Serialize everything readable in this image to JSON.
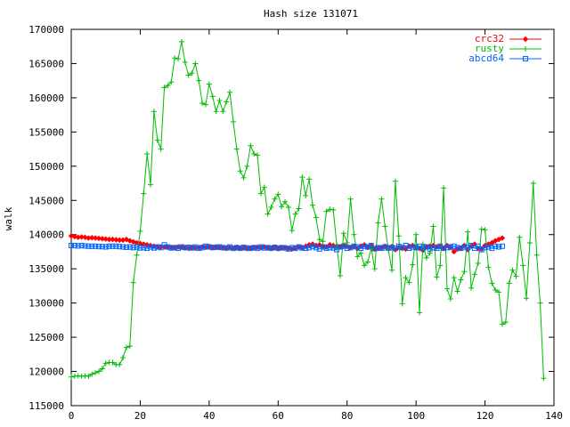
{
  "chart_data": {
    "type": "line",
    "title": "Hash size 131071",
    "xlabel": "",
    "ylabel": "walk",
    "xlim": [
      0,
      140
    ],
    "ylim": [
      115000,
      170000
    ],
    "xticks": [
      0,
      20,
      40,
      60,
      80,
      100,
      120,
      140
    ],
    "yticks": [
      115000,
      120000,
      125000,
      130000,
      135000,
      140000,
      145000,
      150000,
      155000,
      160000,
      165000,
      170000
    ],
    "grid": false,
    "legend_position": "top-right",
    "series": [
      {
        "name": "crc32",
        "color": "#ff0000",
        "marker": "diamond",
        "values": [
          139800,
          139700,
          139600,
          139650,
          139600,
          139500,
          139550,
          139500,
          139450,
          139400,
          139350,
          139300,
          139300,
          139250,
          139200,
          139200,
          139300,
          139100,
          138950,
          138800,
          138700,
          138600,
          138500,
          138400,
          138300,
          138200,
          138200,
          138200,
          138150,
          138100,
          138100,
          138200,
          138150,
          138050,
          138000,
          138100,
          138050,
          138100,
          138200,
          138150,
          138250,
          138150,
          138200,
          138100,
          138050,
          138000,
          138100,
          138000,
          138150,
          138000,
          138050,
          137950,
          138000,
          138100,
          138150,
          138100,
          138200,
          138050,
          138000,
          138100,
          137950,
          138050,
          138100,
          138000,
          137900,
          138050,
          138200,
          138100,
          138300,
          138500,
          138600,
          138400,
          138500,
          138300,
          138200,
          138500,
          138400,
          138300,
          138200,
          138400,
          138300,
          138100,
          138250,
          138000,
          138300,
          138500,
          138100,
          138400,
          137900,
          138000,
          138100,
          138300,
          138100,
          138250,
          137800,
          138150,
          138000,
          137900,
          138300,
          138400,
          138100,
          138000,
          137700,
          138200,
          138300,
          138400,
          138200,
          138300,
          138000,
          138400,
          138100,
          137500,
          137900,
          138000,
          138400,
          137800,
          138300,
          138600,
          138000,
          137900,
          138400,
          138600,
          138800,
          139100,
          139300,
          139500
        ]
      },
      {
        "name": "rusty",
        "color": "#00bb00",
        "marker": "plus",
        "values": [
          119200,
          119300,
          119350,
          119300,
          119350,
          119300,
          119600,
          119800,
          120000,
          120400,
          121200,
          121300,
          121300,
          121000,
          121000,
          122000,
          123500,
          123700,
          133000,
          137000,
          140500,
          146000,
          151800,
          147300,
          158000,
          153800,
          152500,
          161500,
          161800,
          162300,
          165800,
          165700,
          168200,
          165200,
          163300,
          163600,
          165000,
          162500,
          159200,
          159000,
          162000,
          160200,
          158000,
          159600,
          158000,
          159400,
          160800,
          156500,
          152500,
          149300,
          148300,
          150000,
          153000,
          151800,
          151600,
          146000,
          146900,
          143000,
          144000,
          145200,
          145900,
          144100,
          144800,
          144000,
          140600,
          143000,
          143800,
          148400,
          145700,
          148100,
          144300,
          142500,
          139300,
          139000,
          143400,
          143700,
          143600,
          138500,
          134000,
          140200,
          138800,
          145200,
          140000,
          136800,
          137300,
          135500,
          136000,
          138000,
          135000,
          141700,
          145200,
          141200,
          137700,
          134800,
          147800,
          139800,
          129900,
          133700,
          133000,
          135600,
          140000,
          128600,
          138600,
          136600,
          137300,
          141200,
          133800,
          135500,
          146800,
          132100,
          130600,
          133700,
          131700,
          133400,
          134600,
          140400,
          132200,
          134200,
          135800,
          140800,
          140700,
          135200,
          132900,
          131900,
          131600,
          126900,
          127200,
          132900,
          134800,
          133900,
          139600,
          135500,
          130700,
          138800,
          147500,
          137000,
          130000,
          119000
        ]
      },
      {
        "name": "abcd64",
        "color": "#0066ff",
        "marker": "square",
        "values": [
          138400,
          138400,
          138350,
          138400,
          138350,
          138300,
          138300,
          138300,
          138250,
          138250,
          138200,
          138300,
          138300,
          138300,
          138250,
          138200,
          138150,
          138200,
          138100,
          138200,
          138050,
          138100,
          138000,
          138200,
          138050,
          138200,
          138100,
          138500,
          138200,
          138050,
          138100,
          138000,
          138200,
          138100,
          138150,
          138050,
          138200,
          138000,
          138100,
          138300,
          138200,
          138100,
          138150,
          138200,
          138100,
          138050,
          138200,
          138000,
          138100,
          138000,
          138150,
          138050,
          138000,
          138100,
          138000,
          138200,
          138050,
          138100,
          138000,
          138150,
          138000,
          138100,
          138050,
          137900,
          138100,
          138000,
          138200,
          138050,
          138000,
          138100,
          138300,
          138100,
          137900,
          138200,
          138000,
          138100,
          138050,
          137800,
          138200,
          138300,
          138000,
          138100,
          138300,
          138200,
          138000,
          138300,
          138200,
          138400,
          137950,
          138100,
          138000,
          138200,
          138050,
          138100,
          138000,
          138300,
          138100,
          138400,
          138000,
          138200,
          138100,
          138300,
          138000,
          138200,
          137900,
          138100,
          138000,
          138300,
          138000,
          138100,
          138200,
          138300,
          138100,
          138000,
          138200,
          138100,
          138400,
          138000,
          138300,
          137800,
          138100,
          138200,
          138000,
          138300,
          138200,
          138300
        ]
      }
    ]
  }
}
